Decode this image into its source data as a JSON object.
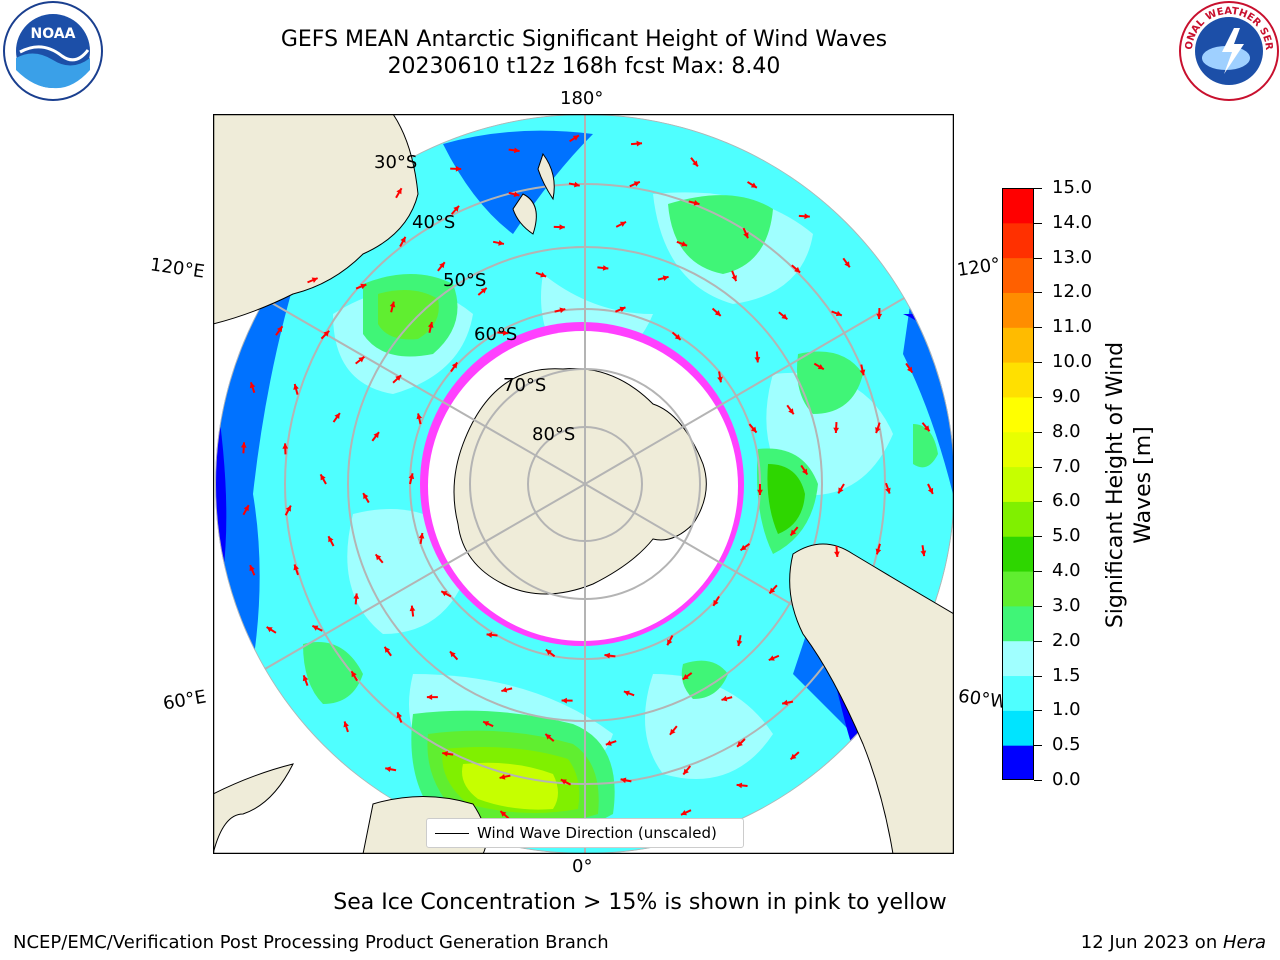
{
  "header": {
    "title_line1": "GEFS MEAN Antarctic Significant Height of Wind Waves",
    "title_line2": "20230610 t12z 168h fcst   Max: 8.40"
  },
  "logos": {
    "left": "noaa-logo",
    "right": "national-weather-service-logo",
    "left_text": "NOAA",
    "right_text": "NATIONAL WEATHER SERVICE"
  },
  "map": {
    "projection": "south-polar-stereographic",
    "longitude_labels": {
      "top": "180°",
      "bottom": "0°",
      "left_upper": "120°E",
      "left_lower": "60°E",
      "right_upper": "120°",
      "right_lower": "60°W"
    },
    "latitude_labels": [
      "30°S",
      "40°S",
      "50°S",
      "60°S",
      "70°S",
      "80°S"
    ],
    "legend_label": "Wind Wave Direction (unscaled)",
    "colors": {
      "land": "#efecd9",
      "ocean_outside": "#ffffff",
      "ice_white": "#ffffff",
      "ice_pink": "#ff40ff",
      "arrow": "#ff0000",
      "grid": "#b4b4b4"
    }
  },
  "colorbar": {
    "label": "Significant Height of Wind\nWaves [m]",
    "ticks": [
      "0.0",
      "0.5",
      "1.0",
      "1.5",
      "2.0",
      "3.0",
      "4.0",
      "5.0",
      "6.0",
      "7.0",
      "8.0",
      "9.0",
      "10.0",
      "11.0",
      "12.0",
      "13.0",
      "14.0",
      "15.0"
    ],
    "colors": [
      "#0000ff",
      "#0072ff",
      "#00e4ff",
      "#4fffff",
      "#a0ffff",
      "#40f577",
      "#60ee30",
      "#2ed600",
      "#80f000",
      "#c6ff00",
      "#e8ff00",
      "#ffff00",
      "#ffe000",
      "#ffbb00",
      "#ff8d00",
      "#ff6000",
      "#ff3000",
      "#ff0000"
    ]
  },
  "notes": {
    "sea_ice": "Sea Ice Concentration > 15% is shown in pink to yellow",
    "footer_left": "NCEP/EMC/Verification Post Processing Product Generation Branch",
    "footer_date": "12 Jun 2023 on ",
    "footer_host": "Hera"
  }
}
